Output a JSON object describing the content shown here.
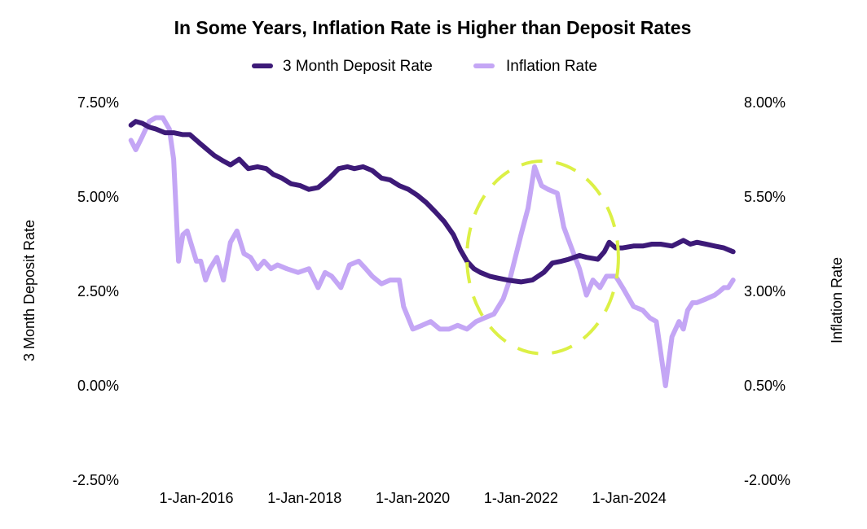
{
  "chart_data": {
    "type": "line",
    "title": "In Some Years, Inflation Rate is Higher than Deposit Rates",
    "xlabel": "",
    "ylabel": "3 Month Deposit Rate",
    "ylabel_right": "Inflation Rate",
    "legend_position": "top-center",
    "grid": false,
    "xlim": [
      2014.75,
      2026.0
    ],
    "ylim_left": [
      -2.5,
      7.5
    ],
    "ylim_right": [
      -2.0,
      8.0
    ],
    "x_ticks": [
      2016,
      2018,
      2020,
      2022,
      2024
    ],
    "x_tick_labels": [
      "1-Jan-2016",
      "1-Jan-2018",
      "1-Jan-2020",
      "1-Jan-2022",
      "1-Jan-2024"
    ],
    "y_left_ticks": [
      7.5,
      5.0,
      2.5,
      0.0,
      -2.5
    ],
    "y_left_tick_labels": [
      "7.50%",
      "5.00%",
      "2.50%",
      "0.00%",
      "-2.50%"
    ],
    "y_right_ticks": [
      8.0,
      5.5,
      3.0,
      0.5,
      -2.0
    ],
    "y_right_tick_labels": [
      "8.00%",
      "5.50%",
      "3.00%",
      "0.50%",
      "-2.00%"
    ],
    "series": [
      {
        "name": "3 Month Deposit Rate",
        "axis": "left",
        "color": "#3d1a78",
        "x": [
          2014.79,
          2014.88,
          2015.0,
          2015.13,
          2015.25,
          2015.42,
          2015.58,
          2015.75,
          2015.88,
          2016.08,
          2016.33,
          2016.5,
          2016.63,
          2016.79,
          2016.96,
          2017.13,
          2017.29,
          2017.42,
          2017.58,
          2017.75,
          2017.92,
          2018.08,
          2018.25,
          2018.46,
          2018.63,
          2018.79,
          2018.92,
          2019.08,
          2019.25,
          2019.42,
          2019.58,
          2019.75,
          2019.92,
          2020.08,
          2020.25,
          2020.42,
          2020.58,
          2020.75,
          2020.88,
          2021.0,
          2021.13,
          2021.25,
          2021.42,
          2021.58,
          2021.75,
          2022.0,
          2022.21,
          2022.42,
          2022.58,
          2022.75,
          2022.88,
          2023.08,
          2023.21,
          2023.42,
          2023.54,
          2023.63,
          2023.75,
          2023.88,
          2024.08,
          2024.25,
          2024.42,
          2024.58,
          2024.79,
          2025.0,
          2025.13,
          2025.25,
          2025.42,
          2025.58,
          2025.75,
          2025.92
        ],
        "values": [
          6.9,
          7.0,
          6.95,
          6.85,
          6.8,
          6.7,
          6.7,
          6.65,
          6.65,
          6.4,
          6.1,
          5.95,
          5.85,
          6.0,
          5.75,
          5.8,
          5.75,
          5.6,
          5.5,
          5.35,
          5.3,
          5.2,
          5.25,
          5.5,
          5.75,
          5.8,
          5.75,
          5.8,
          5.7,
          5.5,
          5.45,
          5.3,
          5.2,
          5.05,
          4.85,
          4.6,
          4.35,
          4.0,
          3.6,
          3.3,
          3.1,
          3.0,
          2.9,
          2.85,
          2.8,
          2.75,
          2.8,
          3.0,
          3.25,
          3.3,
          3.35,
          3.45,
          3.4,
          3.35,
          3.55,
          3.8,
          3.65,
          3.65,
          3.7,
          3.7,
          3.75,
          3.75,
          3.7,
          3.85,
          3.75,
          3.8,
          3.75,
          3.7,
          3.65,
          3.55
        ]
      },
      {
        "name": "Inflation Rate",
        "axis": "right",
        "color": "#c4a6f5",
        "x": [
          2014.79,
          2014.88,
          2015.0,
          2015.13,
          2015.25,
          2015.38,
          2015.5,
          2015.58,
          2015.67,
          2015.75,
          2015.83,
          2016.0,
          2016.08,
          2016.17,
          2016.25,
          2016.38,
          2016.5,
          2016.63,
          2016.75,
          2016.88,
          2017.0,
          2017.13,
          2017.25,
          2017.38,
          2017.5,
          2017.67,
          2017.88,
          2018.08,
          2018.25,
          2018.38,
          2018.5,
          2018.67,
          2018.83,
          2019.0,
          2019.13,
          2019.25,
          2019.42,
          2019.58,
          2019.75,
          2019.83,
          2020.0,
          2020.17,
          2020.33,
          2020.5,
          2020.67,
          2020.83,
          2021.0,
          2021.17,
          2021.33,
          2021.5,
          2021.67,
          2021.79,
          2022.0,
          2022.13,
          2022.25,
          2022.38,
          2022.5,
          2022.67,
          2022.79,
          2022.92,
          2023.08,
          2023.21,
          2023.33,
          2023.46,
          2023.58,
          2023.75,
          2023.88,
          2024.08,
          2024.25,
          2024.38,
          2024.5,
          2024.67,
          2024.79,
          2024.92,
          2025.0,
          2025.08,
          2025.17,
          2025.25,
          2025.42,
          2025.58,
          2025.67,
          2025.75,
          2025.83,
          2025.92
        ],
        "values": [
          7.0,
          6.75,
          7.1,
          7.5,
          7.6,
          7.6,
          7.3,
          6.5,
          3.8,
          4.5,
          4.6,
          3.8,
          3.8,
          3.3,
          3.6,
          3.9,
          3.3,
          4.3,
          4.6,
          4.0,
          3.9,
          3.6,
          3.8,
          3.6,
          3.7,
          3.6,
          3.5,
          3.6,
          3.1,
          3.5,
          3.4,
          3.1,
          3.7,
          3.8,
          3.6,
          3.4,
          3.2,
          3.3,
          3.3,
          2.6,
          2.0,
          2.1,
          2.2,
          2.0,
          2.0,
          2.1,
          2.0,
          2.2,
          2.3,
          2.4,
          2.8,
          3.3,
          4.5,
          5.2,
          6.3,
          5.8,
          5.7,
          5.6,
          4.7,
          4.2,
          3.6,
          2.9,
          3.3,
          3.1,
          3.4,
          3.4,
          3.1,
          2.6,
          2.5,
          2.3,
          2.2,
          0.5,
          1.8,
          2.2,
          2.0,
          2.5,
          2.7,
          2.7,
          2.8,
          2.9,
          3.0,
          3.1,
          3.1,
          3.3
        ]
      }
    ],
    "annotations": [
      {
        "type": "dashed-ellipse",
        "color": "#dcf046",
        "cx": 2022.4,
        "cy_left": 3.4,
        "rx_years": 1.4,
        "ry_left": 2.55
      }
    ]
  }
}
